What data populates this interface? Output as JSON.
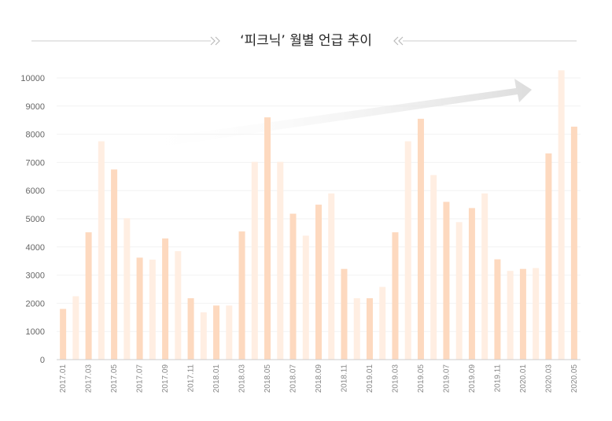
{
  "chart_data": {
    "type": "bar",
    "title": "‘피크닉’ 월별 언급 추이",
    "xlabel": "",
    "ylabel": "",
    "ylim": [
      0,
      10000
    ],
    "yticks": [
      0,
      1000,
      2000,
      3000,
      4000,
      5000,
      6000,
      7000,
      8000,
      9000,
      10000
    ],
    "categories": [
      "2017.01",
      "2017.02",
      "2017.03",
      "2017.04",
      "2017.05",
      "2017.06",
      "2017.07",
      "2017.08",
      "2017.09",
      "2017.10",
      "2017.11",
      "2017.12",
      "2018.01",
      "2018.02",
      "2018.03",
      "2018.04",
      "2018.05",
      "2018.06",
      "2018.07",
      "2018.08",
      "2018.09",
      "2018.10",
      "2018.11",
      "2018.12",
      "2019.01",
      "2019.02",
      "2019.03",
      "2019.04",
      "2019.05",
      "2019.06",
      "2019.07",
      "2019.08",
      "2019.09",
      "2019.10",
      "2019.11",
      "2019.12",
      "2020.01",
      "2020.02",
      "2020.03",
      "2020.04",
      "2020.05"
    ],
    "shown_tick_labels": [
      "2017.01",
      "2017.03",
      "2017.05",
      "2017.07",
      "2017.09",
      "2017.11",
      "2018.01",
      "2018.03",
      "2018.05",
      "2018.07",
      "2018.09",
      "2018.11",
      "2019.01",
      "2019.03",
      "2019.05",
      "2019.07",
      "2019.09",
      "2019.11",
      "2020.01",
      "2020.03",
      "2020.05"
    ],
    "values": [
      1800,
      2250,
      4520,
      7750,
      6750,
      5020,
      3620,
      3550,
      4300,
      3850,
      2180,
      1680,
      1920,
      1920,
      4550,
      7020,
      8600,
      7020,
      5180,
      4400,
      5500,
      5900,
      3220,
      2180,
      2180,
      2580,
      4520,
      7750,
      8550,
      6550,
      5600,
      4880,
      5380,
      5900,
      3560,
      3150,
      3220,
      3250,
      7320,
      10270,
      8270
    ],
    "grid": true,
    "colors": {
      "dark_bar": "#fdd9bf",
      "light_bar": "#ffeee2",
      "arrow": "#e3e3e3",
      "title_line": "#cccccc"
    }
  }
}
